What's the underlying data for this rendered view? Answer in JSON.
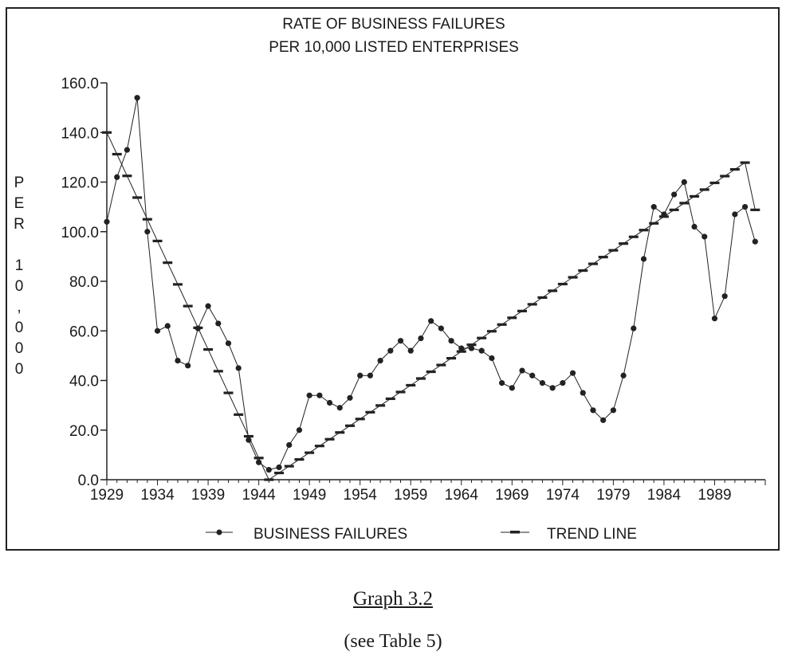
{
  "chart_data": {
    "type": "line",
    "title_lines": [
      "RATE OF BUSINESS FAILURES",
      "PER 10,000 LISTED ENTERPRISES"
    ],
    "ylabel_chars": [
      "P",
      "E",
      "R",
      "",
      "1",
      "0",
      ",",
      "0",
      "0",
      "0"
    ],
    "xlabel": "",
    "xlim": [
      1929,
      1994
    ],
    "ylim": [
      0,
      160
    ],
    "x_tick_labels": [
      "1929",
      "1934",
      "1939",
      "1944",
      "1949",
      "1954",
      "1959",
      "1964",
      "1969",
      "1974",
      "1979",
      "1984",
      "1989"
    ],
    "y_tick_labels": [
      "0.0",
      "20.0",
      "40.0",
      "60.0",
      "80.0",
      "100.0",
      "120.0",
      "140.0",
      "160.0"
    ],
    "legend_position": "bottom",
    "grid": false,
    "series": [
      {
        "name": "BUSINESS FAILURES",
        "marker": "dot",
        "x": [
          1929,
          1930,
          1931,
          1932,
          1933,
          1934,
          1935,
          1936,
          1937,
          1938,
          1939,
          1940,
          1941,
          1942,
          1943,
          1944,
          1945,
          1946,
          1947,
          1948,
          1949,
          1950,
          1951,
          1952,
          1953,
          1954,
          1955,
          1956,
          1957,
          1958,
          1959,
          1960,
          1961,
          1962,
          1963,
          1964,
          1965,
          1966,
          1967,
          1968,
          1969,
          1970,
          1971,
          1972,
          1973,
          1974,
          1975,
          1976,
          1977,
          1978,
          1979,
          1980,
          1981,
          1982,
          1983,
          1984,
          1985,
          1986,
          1987,
          1988,
          1989,
          1990,
          1991,
          1992,
          1993
        ],
        "y": [
          104,
          122,
          133,
          154,
          100,
          60,
          62,
          48,
          46,
          61,
          70,
          63,
          55,
          45,
          16,
          7,
          4,
          5,
          14,
          20,
          34,
          34,
          31,
          29,
          33,
          42,
          42,
          48,
          52,
          56,
          52,
          57,
          64,
          61,
          56,
          53,
          53,
          52,
          49,
          39,
          37,
          44,
          42,
          39,
          37,
          39,
          43,
          35,
          28,
          24,
          28,
          42,
          61,
          89,
          110,
          107,
          115,
          120,
          102,
          98,
          65,
          74,
          107,
          110,
          96
        ]
      },
      {
        "name": "TREND LINE",
        "marker": "dash",
        "x": [
          1929,
          1930,
          1931,
          1932,
          1933,
          1934,
          1935,
          1936,
          1937,
          1938,
          1939,
          1940,
          1941,
          1942,
          1943,
          1944,
          1945,
          1946,
          1947,
          1948,
          1949,
          1950,
          1951,
          1952,
          1953,
          1954,
          1955,
          1956,
          1957,
          1958,
          1959,
          1960,
          1961,
          1962,
          1963,
          1964,
          1965,
          1966,
          1967,
          1968,
          1969,
          1970,
          1971,
          1972,
          1973,
          1974,
          1975,
          1976,
          1977,
          1978,
          1979,
          1980,
          1981,
          1982,
          1983,
          1984,
          1985,
          1986,
          1987,
          1988,
          1989,
          1990,
          1991,
          1992,
          1993
        ],
        "y": [
          140,
          131.25,
          122.5,
          113.75,
          105,
          96.25,
          87.5,
          78.75,
          70,
          61.25,
          52.5,
          43.75,
          35,
          26.25,
          17.5,
          8.75,
          0,
          2.72,
          5.44,
          8.16,
          10.88,
          13.6,
          16.32,
          19.04,
          21.76,
          24.48,
          27.2,
          29.92,
          32.64,
          35.36,
          38.08,
          40.8,
          43.52,
          46.24,
          48.96,
          51.68,
          54.4,
          57.12,
          59.84,
          62.56,
          65.28,
          68,
          70.72,
          73.44,
          76.16,
          78.88,
          81.6,
          84.32,
          87.04,
          89.76,
          92.48,
          95.2,
          97.92,
          100.64,
          103.36,
          106.08,
          108.8,
          111.52,
          114.24,
          116.96,
          119.68,
          122.4,
          125.12,
          127.84,
          108.8
        ]
      }
    ]
  },
  "caption": {
    "title": "Graph 3.2",
    "note": "(see Table 5)"
  }
}
